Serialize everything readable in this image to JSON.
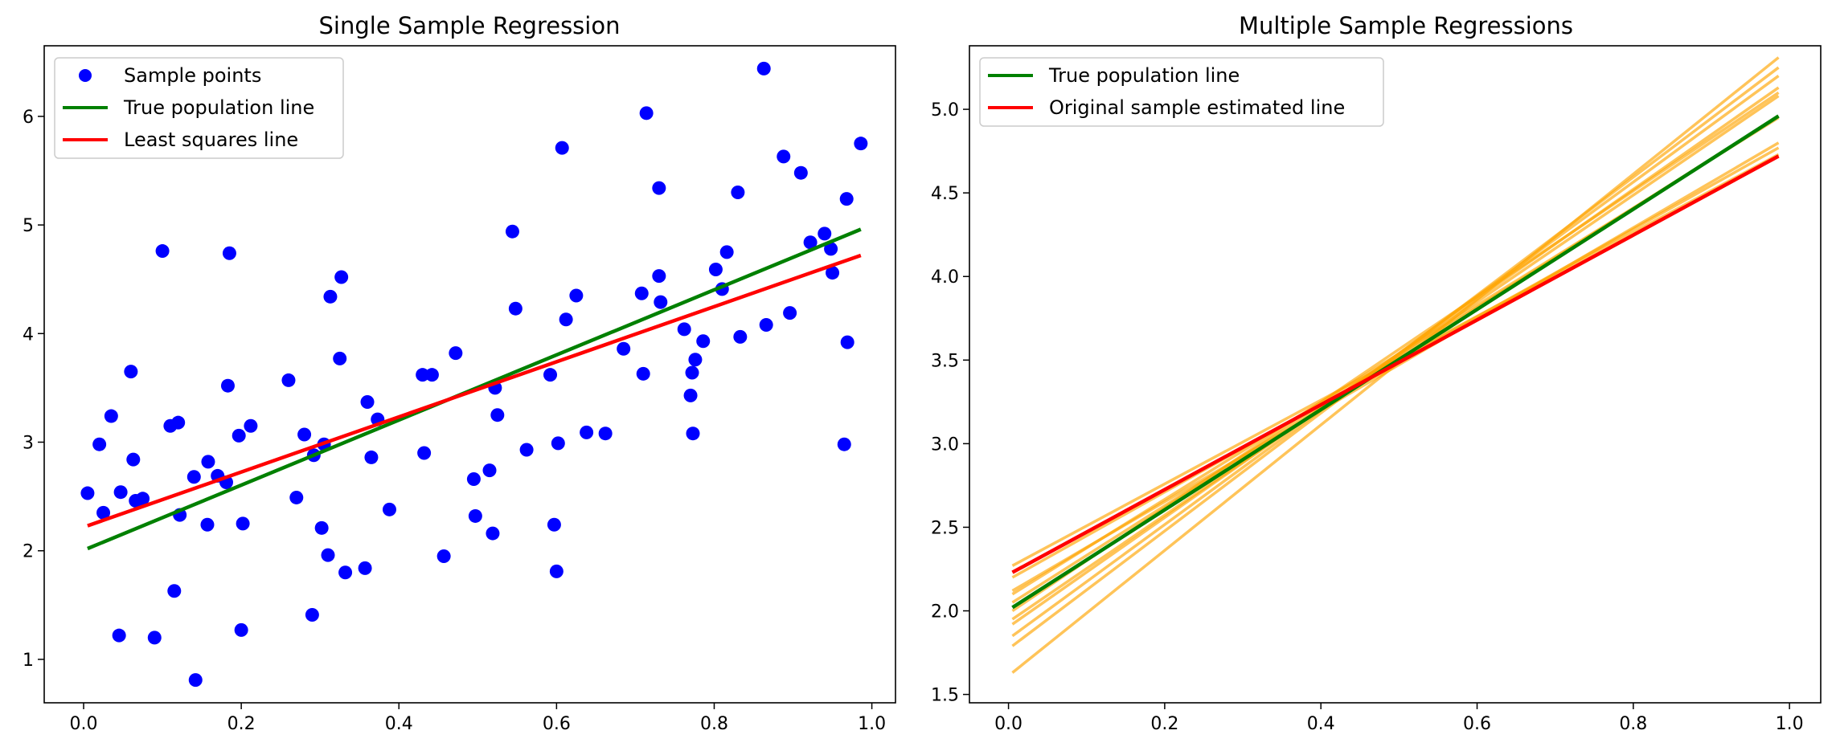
{
  "colors": {
    "points": "#0000ff",
    "true_line": "#008000",
    "ls_line": "#ff0000",
    "sample_lines": "#ffa500"
  },
  "chart_data": [
    {
      "type": "scatter",
      "title": "Single Sample Regression",
      "xlabel": "",
      "ylabel": "",
      "xlim": [
        -0.05,
        1.03
      ],
      "ylim": [
        0.6,
        6.65
      ],
      "xticks": [
        0.0,
        0.2,
        0.4,
        0.6,
        0.8,
        1.0
      ],
      "xtick_labels": [
        "0.0",
        "0.2",
        "0.4",
        "0.6",
        "0.8",
        "1.0"
      ],
      "yticks": [
        1,
        2,
        3,
        4,
        5,
        6
      ],
      "ytick_labels": [
        "1",
        "2",
        "3",
        "4",
        "5",
        "6"
      ],
      "grid": false,
      "legend_position": "top-left",
      "legend": [
        "Sample points",
        "True population line",
        "Least squares line"
      ],
      "points": [
        [
          0.005,
          2.53
        ],
        [
          0.02,
          2.98
        ],
        [
          0.025,
          2.35
        ],
        [
          0.035,
          3.24
        ],
        [
          0.045,
          1.22
        ],
        [
          0.047,
          2.54
        ],
        [
          0.06,
          3.65
        ],
        [
          0.063,
          2.84
        ],
        [
          0.066,
          2.46
        ],
        [
          0.075,
          2.48
        ],
        [
          0.09,
          1.2
        ],
        [
          0.1,
          4.76
        ],
        [
          0.11,
          3.15
        ],
        [
          0.115,
          1.63
        ],
        [
          0.12,
          3.18
        ],
        [
          0.122,
          2.33
        ],
        [
          0.14,
          2.68
        ],
        [
          0.142,
          0.81
        ],
        [
          0.157,
          2.24
        ],
        [
          0.158,
          2.82
        ],
        [
          0.17,
          2.69
        ],
        [
          0.181,
          2.63
        ],
        [
          0.183,
          3.52
        ],
        [
          0.185,
          4.74
        ],
        [
          0.197,
          3.06
        ],
        [
          0.2,
          1.27
        ],
        [
          0.202,
          2.25
        ],
        [
          0.212,
          3.15
        ],
        [
          0.26,
          3.57
        ],
        [
          0.27,
          2.49
        ],
        [
          0.28,
          3.07
        ],
        [
          0.29,
          1.41
        ],
        [
          0.292,
          2.88
        ],
        [
          0.302,
          2.21
        ],
        [
          0.305,
          2.98
        ],
        [
          0.31,
          1.96
        ],
        [
          0.313,
          4.34
        ],
        [
          0.325,
          3.77
        ],
        [
          0.327,
          4.52
        ],
        [
          0.332,
          1.8
        ],
        [
          0.357,
          1.84
        ],
        [
          0.36,
          3.37
        ],
        [
          0.365,
          2.86
        ],
        [
          0.373,
          3.21
        ],
        [
          0.388,
          2.38
        ],
        [
          0.43,
          3.62
        ],
        [
          0.432,
          2.9
        ],
        [
          0.442,
          3.62
        ],
        [
          0.457,
          1.95
        ],
        [
          0.472,
          3.82
        ],
        [
          0.495,
          2.66
        ],
        [
          0.497,
          2.32
        ],
        [
          0.515,
          2.74
        ],
        [
          0.519,
          2.16
        ],
        [
          0.522,
          3.5
        ],
        [
          0.525,
          3.25
        ],
        [
          0.544,
          4.94
        ],
        [
          0.548,
          4.23
        ],
        [
          0.562,
          2.93
        ],
        [
          0.592,
          3.62
        ],
        [
          0.597,
          2.24
        ],
        [
          0.6,
          1.81
        ],
        [
          0.602,
          2.99
        ],
        [
          0.607,
          5.71
        ],
        [
          0.612,
          4.13
        ],
        [
          0.625,
          4.35
        ],
        [
          0.638,
          3.09
        ],
        [
          0.662,
          3.08
        ],
        [
          0.685,
          3.86
        ],
        [
          0.708,
          4.37
        ],
        [
          0.71,
          3.63
        ],
        [
          0.714,
          6.03
        ],
        [
          0.73,
          4.53
        ],
        [
          0.73,
          5.34
        ],
        [
          0.732,
          4.29
        ],
        [
          0.762,
          4.04
        ],
        [
          0.77,
          3.43
        ],
        [
          0.772,
          3.64
        ],
        [
          0.773,
          3.08
        ],
        [
          0.776,
          3.76
        ],
        [
          0.786,
          3.93
        ],
        [
          0.802,
          4.59
        ],
        [
          0.81,
          4.41
        ],
        [
          0.816,
          4.75
        ],
        [
          0.83,
          5.3
        ],
        [
          0.833,
          3.97
        ],
        [
          0.863,
          6.44
        ],
        [
          0.866,
          4.08
        ],
        [
          0.888,
          5.63
        ],
        [
          0.896,
          4.19
        ],
        [
          0.91,
          5.48
        ],
        [
          0.922,
          4.84
        ],
        [
          0.94,
          4.92
        ],
        [
          0.948,
          4.78
        ],
        [
          0.95,
          4.56
        ],
        [
          0.965,
          2.98
        ],
        [
          0.968,
          5.24
        ],
        [
          0.969,
          3.92
        ],
        [
          0.986,
          5.75
        ]
      ],
      "series": [
        {
          "name": "True population line",
          "x": [
            0.005,
            0.986
          ],
          "y": [
            2.02,
            4.96
          ]
        },
        {
          "name": "Least squares line",
          "x": [
            0.005,
            0.986
          ],
          "y": [
            2.23,
            4.72
          ]
        }
      ]
    },
    {
      "type": "line",
      "title": "Multiple Sample Regressions",
      "xlabel": "",
      "ylabel": "",
      "xlim": [
        -0.05,
        1.04
      ],
      "ylim": [
        1.45,
        5.38
      ],
      "xticks": [
        0.0,
        0.2,
        0.4,
        0.6,
        0.8,
        1.0
      ],
      "xtick_labels": [
        "0.0",
        "0.2",
        "0.4",
        "0.6",
        "0.8",
        "1.0"
      ],
      "yticks": [
        1.5,
        2.0,
        2.5,
        3.0,
        3.5,
        4.0,
        4.5,
        5.0
      ],
      "ytick_labels": [
        "1.5",
        "2.0",
        "2.5",
        "3.0",
        "3.5",
        "4.0",
        "4.5",
        "5.0"
      ],
      "grid": false,
      "legend_position": "top-left",
      "legend": [
        "True population line",
        "Original sample estimated line"
      ],
      "sample_lines": [
        [
          0.005,
          1.63,
          0.986,
          5.31
        ],
        [
          0.005,
          1.79,
          0.986,
          5.25
        ],
        [
          0.005,
          1.85,
          0.986,
          5.2
        ],
        [
          0.005,
          1.92,
          0.986,
          5.13
        ],
        [
          0.005,
          1.95,
          0.986,
          5.08
        ],
        [
          0.005,
          2.0,
          0.986,
          5.1
        ],
        [
          0.005,
          2.05,
          0.986,
          4.96
        ],
        [
          0.005,
          2.1,
          0.986,
          4.95
        ],
        [
          0.005,
          2.12,
          0.986,
          4.8
        ],
        [
          0.005,
          2.2,
          0.986,
          4.77
        ],
        [
          0.005,
          2.27,
          0.986,
          4.73
        ]
      ],
      "series": [
        {
          "name": "True population line",
          "x": [
            0.005,
            0.986
          ],
          "y": [
            2.02,
            4.96
          ]
        },
        {
          "name": "Original sample estimated line",
          "x": [
            0.005,
            0.986
          ],
          "y": [
            2.23,
            4.72
          ]
        }
      ]
    }
  ]
}
